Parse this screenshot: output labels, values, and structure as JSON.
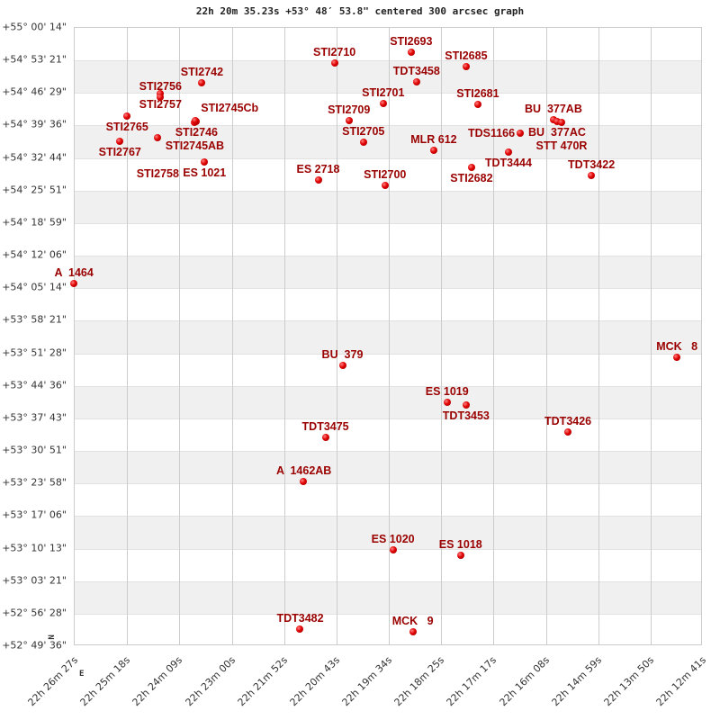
{
  "chart_data": {
    "type": "scatter",
    "title": "22h 20m 35.23s +53° 48′ 53.8\" centered 300 arcsec graph",
    "x_axis": {
      "quantity": "right ascension (seconds of time)",
      "range": [
        80787,
        79961
      ],
      "tick_labels": [
        "22h 26m 27s",
        "22h 25m 18s",
        "22h 24m 09s",
        "22h 23m 00s",
        "22h 21m 52s",
        "22h 20m 43s",
        "22h 19m 34s",
        "22h 18m 25s",
        "22h 17m 17s",
        "22h 16m 08s",
        "22h 14m 59s",
        "22h 13m 50s",
        "22h 12m 41s"
      ]
    },
    "y_axis": {
      "quantity": "declination (degrees)",
      "range": [
        52.8267,
        55.0039
      ],
      "tick_labels": [
        "+55° 00' 14\"",
        "+54° 53' 21\"",
        "+54° 46' 29\"",
        "+54° 39' 36\"",
        "+54° 32' 44\"",
        "+54° 25' 51\"",
        "+54° 18' 59\"",
        "+54° 12' 06\"",
        "+54° 05' 14\"",
        "+53° 58' 21\"",
        "+53° 51' 28\"",
        "+53° 44' 36\"",
        "+53° 37' 43\"",
        "+53° 30' 51\"",
        "+53° 23' 58\"",
        "+53° 17' 06\"",
        "+53° 10' 13\"",
        "+53° 03' 21\"",
        "+52° 56' 28\"",
        "+52° 49' 36\""
      ]
    },
    "grid": true,
    "banded_rows": true,
    "orientation_marks": {
      "north": "N",
      "east": "E"
    },
    "marker_color": "#dd0000",
    "label_color": "#9a0000",
    "points": [
      {
        "name": "STI2693",
        "ra_s": 80343.6,
        "dec": 54.9152
      },
      {
        "name": "STI2710",
        "ra_s": 80444.4,
        "dec": 54.8773
      },
      {
        "name": "STI2685",
        "ra_s": 80271.3,
        "dec": 54.8646
      },
      {
        "name": "STI2742",
        "ra_s": 80618.6,
        "dec": 54.8076
      },
      {
        "name": "TDT3458",
        "ra_s": 80336.5,
        "dec": 54.8108
      },
      {
        "name": "STI2757",
        "ra_s": 80673.2,
        "dec": 54.7696
      },
      {
        "name": "STI2756",
        "ra_s": 80673.2,
        "dec": 54.7569
      },
      {
        "name": "STI2701",
        "ra_s": 80380.3,
        "dec": 54.7348
      },
      {
        "name": "STI2681",
        "ra_s": 80255.9,
        "dec": 54.7316
      },
      {
        "name": "STI2765",
        "ra_s": 80717.1,
        "dec": 54.6905
      },
      {
        "name": "STI2746",
        "ra_s": 80625.8,
        "dec": 54.6715
      },
      {
        "name": "STI2745AB",
        "ra_s": 80628.1,
        "dec": 54.6683
      },
      {
        "name": "STI2745Cb",
        "ra_s": 80626.9,
        "dec": 54.6746
      },
      {
        "name": "STI2709",
        "ra_s": 80425.4,
        "dec": 54.6746
      },
      {
        "name": "BU  377AB",
        "ra_s": 80156.3,
        "dec": 54.6778
      },
      {
        "name": "BU  377AC",
        "ra_s": 80151.5,
        "dec": 54.6715
      },
      {
        "name": "STT 470R",
        "ra_s": 80145.6,
        "dec": 54.6683
      },
      {
        "name": "TDS1166",
        "ra_s": 80200.1,
        "dec": 54.6303
      },
      {
        "name": "STI2767",
        "ra_s": 80726.5,
        "dec": 54.6018
      },
      {
        "name": "STI2758",
        "ra_s": 80676.7,
        "dec": 54.6145
      },
      {
        "name": "STI2705",
        "ra_s": 80406.4,
        "dec": 54.5986
      },
      {
        "name": "MLR 612",
        "ra_s": 80314.0,
        "dec": 54.5701
      },
      {
        "name": "TDT3444",
        "ra_s": 80215.6,
        "dec": 54.5638
      },
      {
        "name": "STI2682",
        "ra_s": 80264.2,
        "dec": 54.51
      },
      {
        "name": "ES 1021",
        "ra_s": 80615.1,
        "dec": 54.529
      },
      {
        "name": "TDT3422",
        "ra_s": 80106.5,
        "dec": 54.4815
      },
      {
        "name": "ES 2718",
        "ra_s": 80465.7,
        "dec": 54.4657
      },
      {
        "name": "STI2700",
        "ra_s": 80378.0,
        "dec": 54.4467
      },
      {
        "name": "A  1464",
        "ra_s": 80787.0,
        "dec": 54.1016
      },
      {
        "name": "MCK   8",
        "ra_s": 79993.9,
        "dec": 53.8419
      },
      {
        "name": "BU  379",
        "ra_s": 80433.7,
        "dec": 53.8134
      },
      {
        "name": "ES 1019",
        "ra_s": 80296.2,
        "dec": 53.6836
      },
      {
        "name": "TDT3453",
        "ra_s": 80271.3,
        "dec": 53.6741
      },
      {
        "name": "TDT3426",
        "ra_s": 80137.3,
        "dec": 53.5792
      },
      {
        "name": "TDT3475",
        "ra_s": 80456.2,
        "dec": 53.5602
      },
      {
        "name": "A  1462AB",
        "ra_s": 80484.7,
        "dec": 53.405
      },
      {
        "name": "ES 1020",
        "ra_s": 80367.3,
        "dec": 53.1612
      },
      {
        "name": "ES 1018",
        "ra_s": 80278.4,
        "dec": 53.1422
      },
      {
        "name": "TDT3482",
        "ra_s": 80489.4,
        "dec": 52.8826
      },
      {
        "name": "MCK   9",
        "ra_s": 80341.2,
        "dec": 52.8731
      }
    ]
  }
}
